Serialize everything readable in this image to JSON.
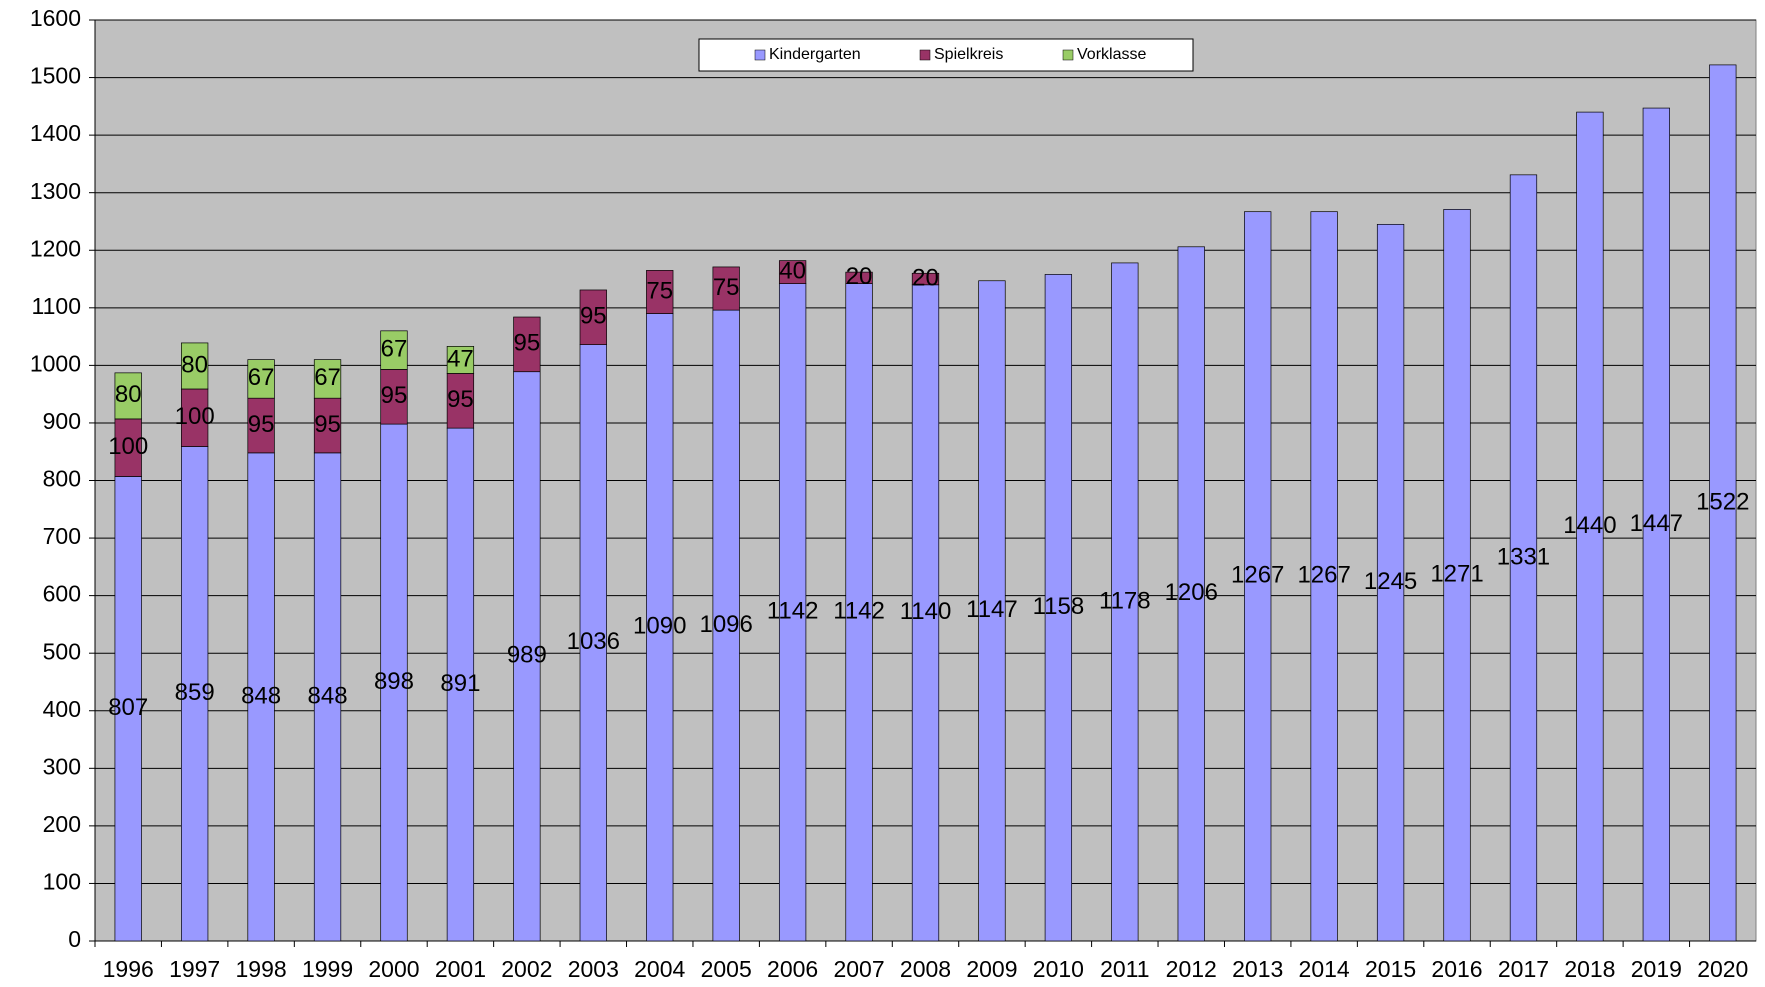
{
  "chart_data": {
    "type": "stacked_bar",
    "categories": [
      "1996",
      "1997",
      "1998",
      "1999",
      "2000",
      "2001",
      "2002",
      "2003",
      "2004",
      "2005",
      "2006",
      "2007",
      "2008",
      "2009",
      "2010",
      "2011",
      "2012",
      "2013",
      "2014",
      "2015",
      "2016",
      "2017",
      "2018",
      "2019",
      "2020"
    ],
    "series": [
      {
        "name": "Kindergarten",
        "color": "#9999ff",
        "values": [
          807,
          859,
          848,
          848,
          898,
          891,
          989,
          1036,
          1090,
          1096,
          1142,
          1142,
          1140,
          1147,
          1158,
          1178,
          1206,
          1267,
          1267,
          1245,
          1271,
          1331,
          1440,
          1447,
          1522
        ]
      },
      {
        "name": "Spielkreis",
        "color": "#993366",
        "values": [
          100,
          100,
          95,
          95,
          95,
          95,
          95,
          95,
          75,
          75,
          40,
          20,
          20,
          null,
          null,
          null,
          null,
          null,
          null,
          null,
          null,
          null,
          null,
          null,
          null
        ]
      },
      {
        "name": "Vorklasse",
        "color": "#99cc66",
        "values": [
          80,
          80,
          67,
          67,
          67,
          47,
          null,
          null,
          null,
          null,
          null,
          null,
          null,
          null,
          null,
          null,
          null,
          null,
          null,
          null,
          null,
          null,
          null,
          null,
          null
        ]
      }
    ],
    "ylim": [
      0,
      1600
    ],
    "yticks": [
      0,
      100,
      200,
      300,
      400,
      500,
      600,
      700,
      800,
      900,
      1000,
      1100,
      1200,
      1300,
      1400,
      1500,
      1600
    ],
    "grid": true,
    "legend": "top",
    "plot_background": "#c0c0c0"
  }
}
